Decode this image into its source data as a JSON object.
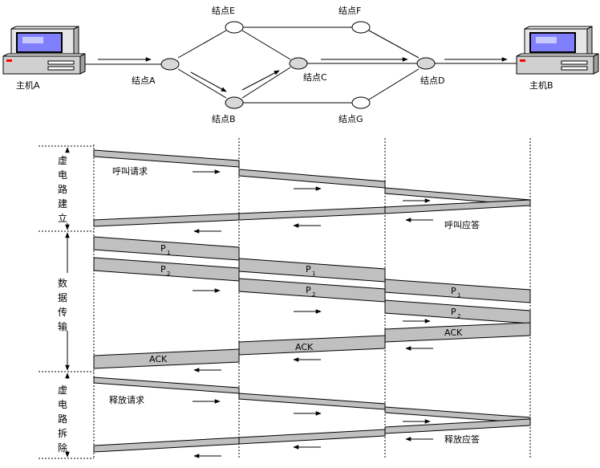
{
  "network": {
    "host_a": "主机A",
    "host_b": "主机B",
    "node_a": "结点A",
    "node_b": "结点B",
    "node_c": "结点C",
    "node_d": "结点D",
    "node_e": "结点E",
    "node_f": "结点F",
    "node_g": "结点G"
  },
  "phases": {
    "setup": [
      "虚",
      "电",
      "路",
      "建",
      "立"
    ],
    "transfer": [
      "数",
      "据",
      "传",
      "输"
    ],
    "teardown": [
      "虚",
      "电",
      "路",
      "拆",
      "除"
    ]
  },
  "messages": {
    "call_request": "呼叫请求",
    "call_accept": "呼叫应答",
    "packet_letter": "P",
    "p1_sub": "1",
    "p2_sub": "2",
    "ack": "ACK",
    "release_request": "释放请求",
    "release_accept": "释放应答"
  },
  "colors": {
    "band": "#c0c0c0",
    "node_fill": "#d8d8d8",
    "monitor_screen": "#8080ff",
    "host_indicator": "#ff0000"
  }
}
